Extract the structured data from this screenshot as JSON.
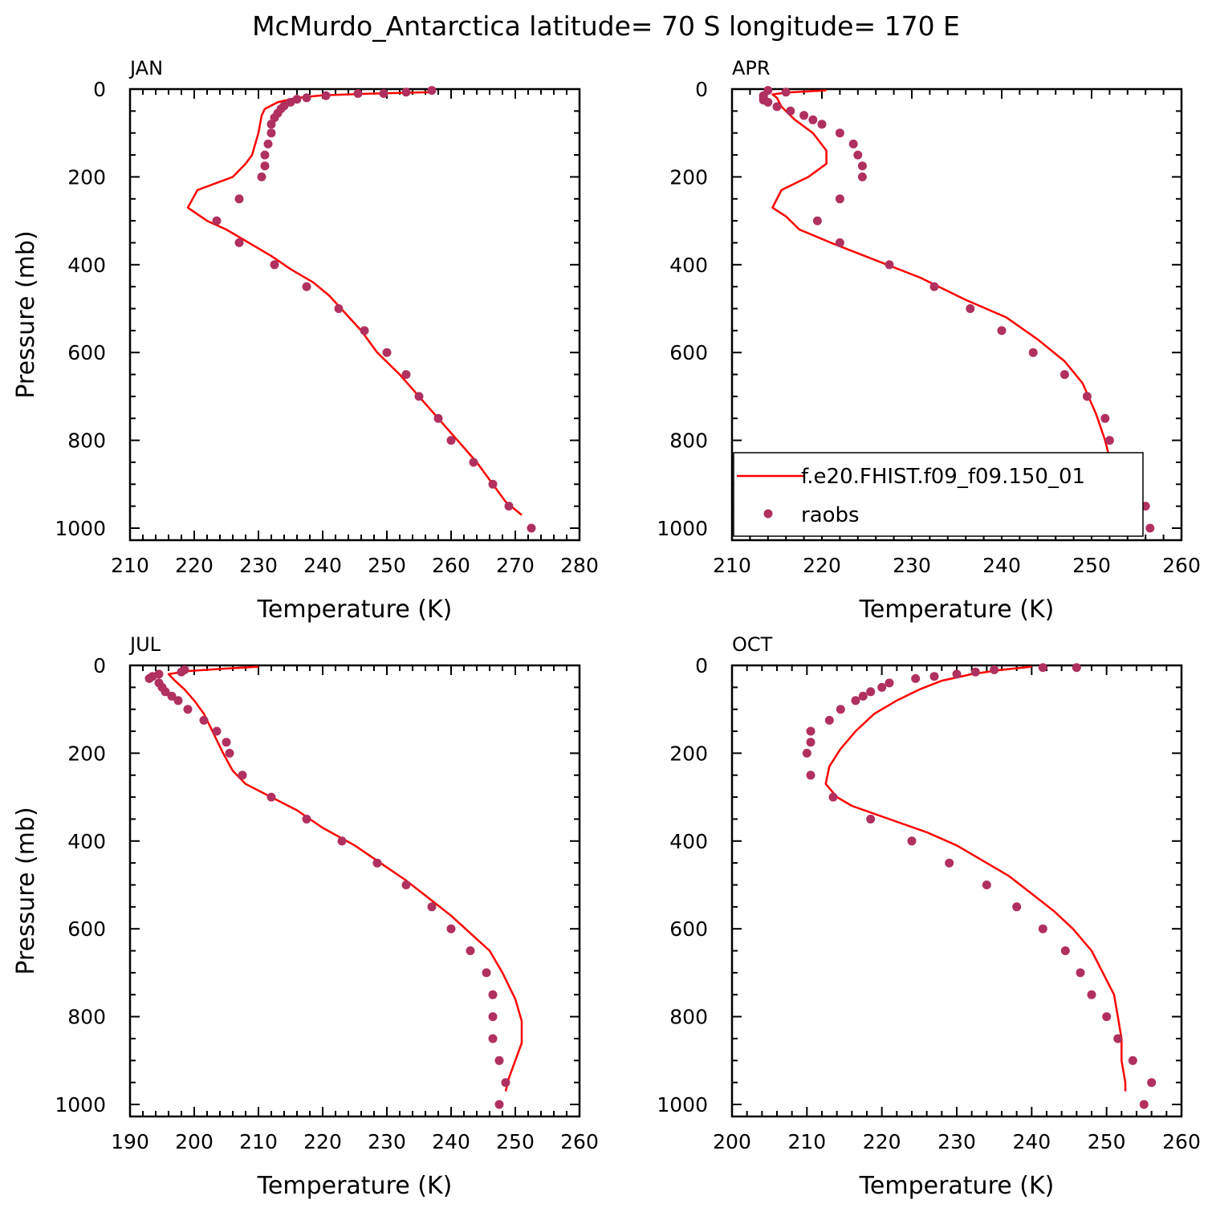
{
  "title": "McMurdo_Antarctica  latitude= 70 S longitude= 170 E",
  "colors": {
    "model": "#ff0000",
    "obs": "#b03060",
    "axis": "#000000"
  },
  "legend": {
    "model_label": "f.e20.FHIST.f09_f09.150_01",
    "obs_label": "raobs",
    "placement": "lower-right of APR panel"
  },
  "chart_data": [
    {
      "type": "line",
      "panel": "JAN",
      "xlabel": "Temperature (K)",
      "ylabel": "Pressure (mb)",
      "xlim": [
        210,
        280
      ],
      "ylim": [
        1000,
        0
      ],
      "xticks": [
        210,
        220,
        230,
        240,
        250,
        260,
        270,
        280
      ],
      "yticks": [
        0,
        200,
        400,
        600,
        800,
        1000
      ],
      "series": [
        {
          "name": "f.e20.FHIST.f09_f09.150_01",
          "kind": "line",
          "points": [
            [
              257.5,
              7
            ],
            [
              248,
              10
            ],
            [
              240,
              14
            ],
            [
              236,
              20
            ],
            [
              233,
              30
            ],
            [
              231,
              45
            ],
            [
              230.5,
              60
            ],
            [
              230,
              100
            ],
            [
              229,
              150
            ],
            [
              228,
              170
            ],
            [
              226,
              200
            ],
            [
              220.5,
              230
            ],
            [
              219,
              270
            ],
            [
              222,
              300
            ],
            [
              225,
              320
            ],
            [
              228.5,
              350
            ],
            [
              232,
              380
            ],
            [
              235,
              410
            ],
            [
              238.5,
              440
            ],
            [
              241,
              470
            ],
            [
              243.5,
              510
            ],
            [
              246,
              550
            ],
            [
              248.5,
              600
            ],
            [
              252,
              650
            ],
            [
              255,
              700
            ],
            [
              258,
              750
            ],
            [
              261,
              800
            ],
            [
              264,
              850
            ],
            [
              266.5,
              900
            ],
            [
              268.5,
              940
            ],
            [
              271,
              970
            ]
          ]
        },
        {
          "name": "raobs",
          "kind": "scatter",
          "points": [
            [
              257,
              3
            ],
            [
              253,
              7
            ],
            [
              249.5,
              10
            ],
            [
              245.5,
              10
            ],
            [
              240.5,
              15
            ],
            [
              237.5,
              20
            ],
            [
              236,
              23
            ],
            [
              235,
              30
            ],
            [
              234,
              38
            ],
            [
              233.5,
              45
            ],
            [
              233,
              55
            ],
            [
              232.5,
              65
            ],
            [
              232,
              80
            ],
            [
              232,
              100
            ],
            [
              231.5,
              125
            ],
            [
              231,
              150
            ],
            [
              231,
              175
            ],
            [
              230.5,
              200
            ],
            [
              227,
              250
            ],
            [
              223.5,
              300
            ],
            [
              227,
              350
            ],
            [
              232.5,
              400
            ],
            [
              237.5,
              450
            ],
            [
              242.5,
              500
            ],
            [
              246.5,
              550
            ],
            [
              250,
              600
            ],
            [
              253,
              650
            ],
            [
              255,
              700
            ],
            [
              258,
              750
            ],
            [
              260,
              800
            ],
            [
              263.5,
              850
            ],
            [
              266.5,
              900
            ],
            [
              269,
              950
            ],
            [
              272.5,
              1000
            ]
          ]
        }
      ]
    },
    {
      "type": "line",
      "panel": "APR",
      "xlabel": "Temperature (K)",
      "ylabel": "",
      "xlim": [
        210,
        260
      ],
      "ylim": [
        1000,
        0
      ],
      "xticks": [
        210,
        220,
        230,
        240,
        250,
        260
      ],
      "yticks": [
        0,
        200,
        400,
        600,
        800,
        1000
      ],
      "series": [
        {
          "name": "f.e20.FHIST.f09_f09.150_01",
          "kind": "line",
          "points": [
            [
              220.5,
              3
            ],
            [
              216,
              8
            ],
            [
              214.5,
              12
            ],
            [
              215,
              20
            ],
            [
              215.5,
              40
            ],
            [
              217,
              70
            ],
            [
              219,
              100
            ],
            [
              220.5,
              140
            ],
            [
              220.5,
              170
            ],
            [
              218.5,
              200
            ],
            [
              215.5,
              230
            ],
            [
              214.5,
              270
            ],
            [
              216,
              290
            ],
            [
              217.5,
              320
            ],
            [
              221,
              350
            ],
            [
              226,
              390
            ],
            [
              231,
              430
            ],
            [
              236,
              480
            ],
            [
              240.5,
              520
            ],
            [
              244,
              570
            ],
            [
              247,
              620
            ],
            [
              249,
              670
            ],
            [
              250.5,
              740
            ],
            [
              251.5,
              800
            ],
            [
              252,
              840
            ],
            [
              251.5,
              900
            ],
            [
              251,
              950
            ],
            [
              250.5,
              970
            ]
          ]
        },
        {
          "name": "raobs",
          "kind": "scatter",
          "points": [
            [
              214,
              3
            ],
            [
              216,
              7
            ],
            [
              213.5,
              15
            ],
            [
              213.5,
              20
            ],
            [
              213.5,
              25
            ],
            [
              214,
              30
            ],
            [
              215,
              40
            ],
            [
              216.5,
              50
            ],
            [
              218,
              60
            ],
            [
              219,
              70
            ],
            [
              220,
              80
            ],
            [
              222,
              100
            ],
            [
              223.5,
              125
            ],
            [
              224,
              150
            ],
            [
              224.5,
              175
            ],
            [
              224.5,
              200
            ],
            [
              222,
              250
            ],
            [
              219.5,
              300
            ],
            [
              222,
              350
            ],
            [
              227.5,
              400
            ],
            [
              232.5,
              450
            ],
            [
              236.5,
              500
            ],
            [
              240,
              550
            ],
            [
              243.5,
              600
            ],
            [
              247,
              650
            ],
            [
              249.5,
              700
            ],
            [
              251.5,
              750
            ],
            [
              252,
              800
            ],
            [
              252.5,
              850
            ],
            [
              254,
              900
            ],
            [
              256,
              950
            ],
            [
              256.5,
              1000
            ]
          ]
        }
      ]
    },
    {
      "type": "line",
      "panel": "JUL",
      "xlabel": "Temperature (K)",
      "ylabel": "Pressure (mb)",
      "xlim": [
        190,
        260
      ],
      "ylim": [
        1000,
        0
      ],
      "xticks": [
        190,
        200,
        210,
        220,
        230,
        240,
        250,
        260
      ],
      "yticks": [
        0,
        200,
        400,
        600,
        800,
        1000
      ],
      "series": [
        {
          "name": "f.e20.FHIST.f09_f09.150_01",
          "kind": "line",
          "points": [
            [
              210,
              3
            ],
            [
              204,
              8
            ],
            [
              199,
              13
            ],
            [
              196,
              20
            ],
            [
              197,
              35
            ],
            [
              198.5,
              55
            ],
            [
              200,
              80
            ],
            [
              201.5,
              110
            ],
            [
              202.5,
              140
            ],
            [
              203.5,
              170
            ],
            [
              204.5,
              200
            ],
            [
              206,
              240
            ],
            [
              208,
              270
            ],
            [
              212,
              300
            ],
            [
              216,
              330
            ],
            [
              220,
              370
            ],
            [
              225,
              410
            ],
            [
              229,
              450
            ],
            [
              233,
              490
            ],
            [
              236.5,
              530
            ],
            [
              240,
              570
            ],
            [
              243,
              610
            ],
            [
              246,
              650
            ],
            [
              248,
              700
            ],
            [
              250,
              760
            ],
            [
              251,
              810
            ],
            [
              251,
              860
            ],
            [
              250,
              900
            ],
            [
              249,
              940
            ],
            [
              248.5,
              970
            ]
          ]
        },
        {
          "name": "raobs",
          "kind": "scatter",
          "points": [
            [
              198.5,
              10
            ],
            [
              198,
              15
            ],
            [
              194.5,
              20
            ],
            [
              193.5,
              25
            ],
            [
              193,
              30
            ],
            [
              194.5,
              40
            ],
            [
              195,
              50
            ],
            [
              195.5,
              60
            ],
            [
              196.5,
              70
            ],
            [
              197.5,
              80
            ],
            [
              199,
              100
            ],
            [
              201.5,
              125
            ],
            [
              203.5,
              150
            ],
            [
              205,
              175
            ],
            [
              205.5,
              200
            ],
            [
              207.5,
              250
            ],
            [
              212,
              300
            ],
            [
              217.5,
              350
            ],
            [
              223,
              400
            ],
            [
              228.5,
              450
            ],
            [
              233,
              500
            ],
            [
              237,
              550
            ],
            [
              240,
              600
            ],
            [
              243,
              650
            ],
            [
              245.5,
              700
            ],
            [
              246.5,
              750
            ],
            [
              246.5,
              800
            ],
            [
              246.5,
              850
            ],
            [
              247.5,
              900
            ],
            [
              248.5,
              950
            ],
            [
              247.5,
              1000
            ]
          ]
        }
      ]
    },
    {
      "type": "line",
      "panel": "OCT",
      "xlabel": "Temperature (K)",
      "ylabel": "",
      "xlim": [
        200,
        260
      ],
      "ylim": [
        1000,
        0
      ],
      "xticks": [
        200,
        210,
        220,
        230,
        240,
        250,
        260
      ],
      "yticks": [
        0,
        200,
        400,
        600,
        800,
        1000
      ],
      "series": [
        {
          "name": "f.e20.FHIST.f09_f09.150_01",
          "kind": "line",
          "points": [
            [
              240,
              3
            ],
            [
              236,
              10
            ],
            [
              232,
              20
            ],
            [
              228,
              35
            ],
            [
              225,
              55
            ],
            [
              222,
              80
            ],
            [
              219,
              110
            ],
            [
              216.5,
              150
            ],
            [
              214.5,
              190
            ],
            [
              213,
              230
            ],
            [
              212.5,
              270
            ],
            [
              214,
              300
            ],
            [
              216,
              320
            ],
            [
              221,
              350
            ],
            [
              226,
              380
            ],
            [
              230,
              410
            ],
            [
              233,
              440
            ],
            [
              237,
              480
            ],
            [
              240,
              520
            ],
            [
              243,
              560
            ],
            [
              245.5,
              600
            ],
            [
              248,
              650
            ],
            [
              249.5,
              700
            ],
            [
              251,
              750
            ],
            [
              251.5,
              800
            ],
            [
              252,
              850
            ],
            [
              252,
              900
            ],
            [
              252.5,
              950
            ],
            [
              252.5,
              970
            ]
          ]
        },
        {
          "name": "raobs",
          "kind": "scatter",
          "points": [
            [
              246,
              5
            ],
            [
              241.5,
              5
            ],
            [
              235,
              10
            ],
            [
              232.5,
              15
            ],
            [
              230,
              20
            ],
            [
              227,
              25
            ],
            [
              224.5,
              30
            ],
            [
              221,
              40
            ],
            [
              220,
              50
            ],
            [
              218.5,
              60
            ],
            [
              217.5,
              70
            ],
            [
              216.5,
              80
            ],
            [
              214.5,
              100
            ],
            [
              213,
              125
            ],
            [
              210.5,
              150
            ],
            [
              210.5,
              175
            ],
            [
              210,
              200
            ],
            [
              210.5,
              250
            ],
            [
              213.5,
              300
            ],
            [
              218.5,
              350
            ],
            [
              224,
              400
            ],
            [
              229,
              450
            ],
            [
              234,
              500
            ],
            [
              238,
              550
            ],
            [
              241.5,
              600
            ],
            [
              244.5,
              650
            ],
            [
              246.5,
              700
            ],
            [
              248,
              750
            ],
            [
              250,
              800
            ],
            [
              251.5,
              850
            ],
            [
              253.5,
              900
            ],
            [
              256,
              950
            ],
            [
              255,
              1000
            ]
          ]
        }
      ]
    }
  ]
}
